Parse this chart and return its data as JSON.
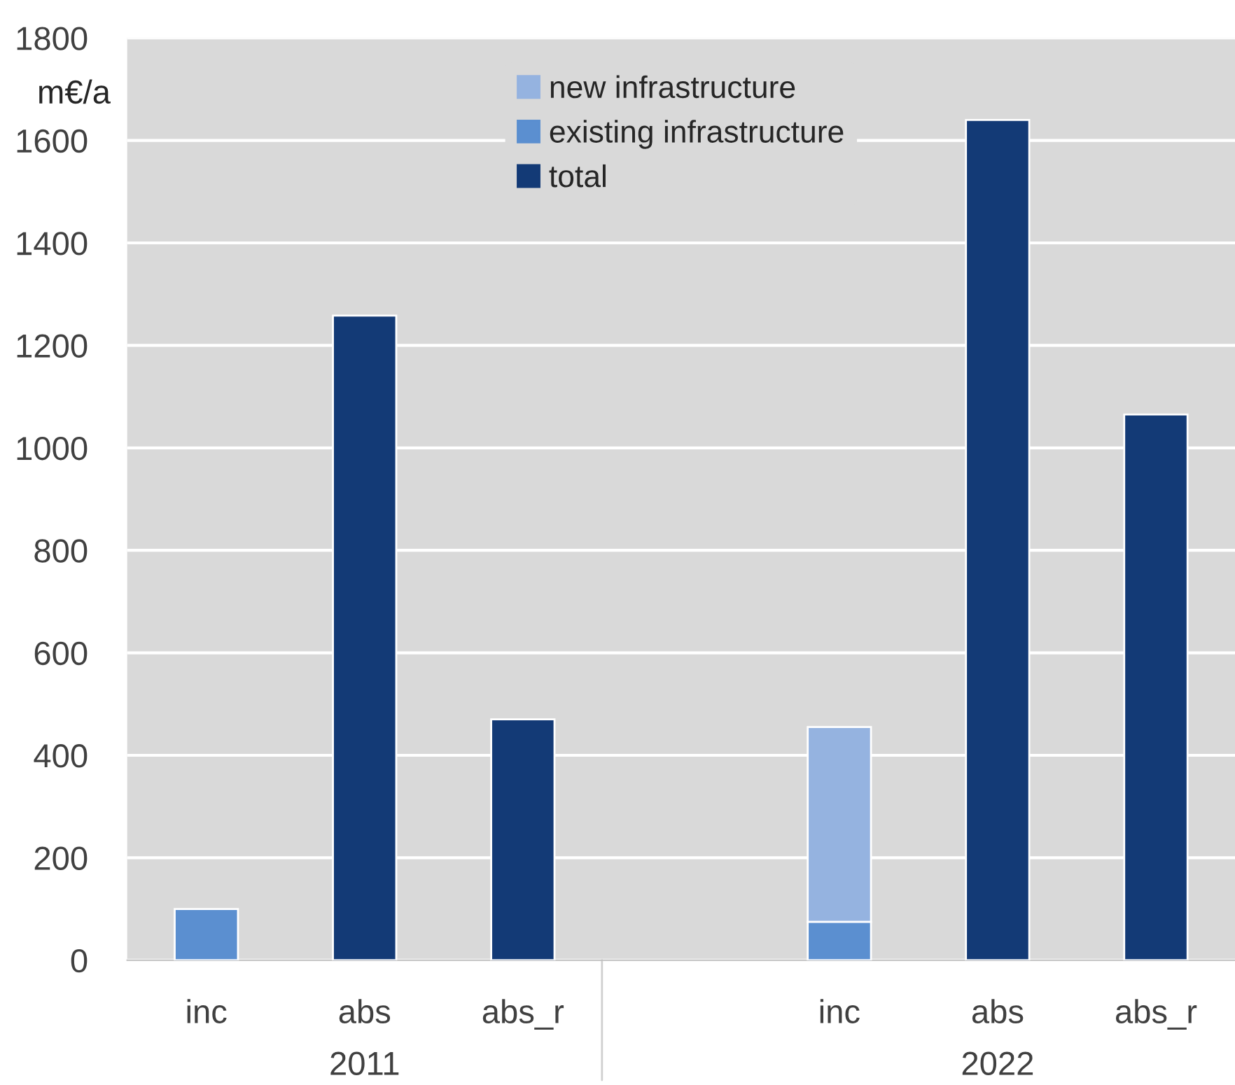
{
  "chart_data": {
    "type": "bar",
    "stacked": true,
    "ylabel": "m€/a",
    "categories": [
      "inc",
      "abs",
      "abs_r",
      null,
      "inc",
      "abs",
      "abs_r"
    ],
    "series": [
      {
        "name": "existing infrastructure",
        "color": "#5b8fd0",
        "values": [
          100,
          null,
          null,
          null,
          75,
          null,
          null
        ]
      },
      {
        "name": "new infrastructure",
        "color": "#95b3e0",
        "values": [
          null,
          null,
          null,
          null,
          380,
          null,
          null
        ]
      },
      {
        "name": "total",
        "color": "#133a76",
        "values": [
          null,
          1258,
          470,
          null,
          null,
          1640,
          1065
        ]
      }
    ],
    "annotations": [
      "2011",
      "2022"
    ],
    "ylim": [
      0,
      1800
    ],
    "yticks": [
      0,
      200,
      400,
      600,
      800,
      1000,
      1200,
      1400,
      1600,
      1800
    ],
    "grid": "y",
    "legend": "top"
  }
}
